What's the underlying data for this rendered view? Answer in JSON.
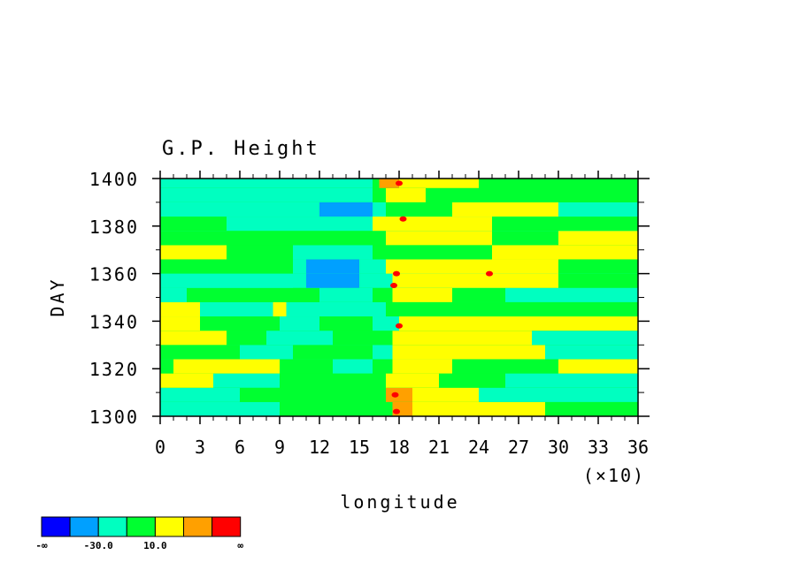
{
  "chart_data": {
    "type": "heatmap",
    "title": "G.P. Height",
    "xlabel": "longitude",
    "ylabel": "DAY",
    "x_scale_note": "(×10)",
    "xlim": [
      0,
      36
    ],
    "ylim": [
      1300,
      1400
    ],
    "x_ticks": [
      "0",
      "3",
      "6",
      "9",
      "12",
      "15",
      "18",
      "21",
      "24",
      "27",
      "30",
      "33",
      "36"
    ],
    "y_ticks": [
      "1300",
      "1320",
      "1340",
      "1360",
      "1380",
      "1400"
    ],
    "colorbar": {
      "colors": [
        "#0000ff",
        "#00a0ff",
        "#00ffc0",
        "#00ff30",
        "#ffff00",
        "#ffa000",
        "#ff0000"
      ],
      "labels": [
        "-∞",
        "-30.0",
        "10.0",
        "∞"
      ]
    },
    "bands": [
      {
        "y0": 1300,
        "y1": 1306,
        "base": 3,
        "segs": [
          [
            0,
            9,
            2
          ],
          [
            16.5,
            17.5,
            3
          ],
          [
            17.5,
            19,
            5
          ],
          [
            19,
            26,
            4
          ],
          [
            26,
            29,
            4
          ]
        ]
      },
      {
        "y0": 1306,
        "y1": 1312,
        "base": 3,
        "segs": [
          [
            0,
            6,
            2
          ],
          [
            17,
            19,
            5
          ],
          [
            19,
            24,
            4
          ],
          [
            24,
            36,
            2
          ]
        ]
      },
      {
        "y0": 1312,
        "y1": 1318,
        "base": 3,
        "segs": [
          [
            0,
            4,
            4
          ],
          [
            4,
            9,
            2
          ],
          [
            17,
            21,
            4
          ],
          [
            26,
            36,
            2
          ]
        ]
      },
      {
        "y0": 1318,
        "y1": 1324,
        "base": 3,
        "segs": [
          [
            1,
            9,
            4
          ],
          [
            13,
            16,
            2
          ],
          [
            17.5,
            22,
            4
          ],
          [
            30,
            36,
            4
          ]
        ]
      },
      {
        "y0": 1324,
        "y1": 1330,
        "base": 2,
        "segs": [
          [
            0,
            6,
            3
          ],
          [
            10,
            16,
            3
          ],
          [
            17.5,
            22,
            4
          ],
          [
            22,
            29,
            4
          ]
        ]
      },
      {
        "y0": 1330,
        "y1": 1336,
        "base": 3,
        "segs": [
          [
            0,
            5,
            4
          ],
          [
            8,
            13,
            2
          ],
          [
            17.5,
            28,
            4
          ],
          [
            28,
            36,
            2
          ]
        ]
      },
      {
        "y0": 1336,
        "y1": 1342,
        "base": 3,
        "segs": [
          [
            0,
            3,
            4
          ],
          [
            9,
            12,
            2
          ],
          [
            16,
            18,
            2
          ],
          [
            18,
            36,
            4
          ]
        ]
      },
      {
        "y0": 1342,
        "y1": 1348,
        "base": 2,
        "segs": [
          [
            0,
            3,
            4
          ],
          [
            8.5,
            9.5,
            4
          ],
          [
            17,
            22,
            3
          ],
          [
            22,
            36,
            3
          ]
        ]
      },
      {
        "y0": 1348,
        "y1": 1354,
        "base": 3,
        "segs": [
          [
            0,
            2,
            2
          ],
          [
            12,
            16,
            2
          ],
          [
            17.5,
            22,
            4
          ],
          [
            26,
            36,
            2
          ]
        ]
      },
      {
        "y0": 1354,
        "y1": 1360,
        "base": 2,
        "segs": [
          [
            0,
            10,
            2
          ],
          [
            11,
            15,
            1
          ],
          [
            17.5,
            30,
            4
          ],
          [
            30,
            36,
            3
          ]
        ]
      },
      {
        "y0": 1360,
        "y1": 1366,
        "base": 2,
        "segs": [
          [
            0,
            10,
            3
          ],
          [
            11,
            15,
            1
          ],
          [
            17,
            30,
            4
          ],
          [
            30,
            36,
            3
          ]
        ]
      },
      {
        "y0": 1366,
        "y1": 1372,
        "base": 3,
        "segs": [
          [
            0,
            5,
            4
          ],
          [
            10,
            16,
            2
          ],
          [
            17,
            25,
            3
          ],
          [
            25,
            36,
            4
          ]
        ]
      },
      {
        "y0": 1372,
        "y1": 1378,
        "base": 3,
        "segs": [
          [
            0,
            12,
            3
          ],
          [
            17,
            25,
            4
          ],
          [
            30,
            36,
            4
          ]
        ]
      },
      {
        "y0": 1378,
        "y1": 1384,
        "base": 2,
        "segs": [
          [
            0,
            5,
            3
          ],
          [
            16,
            25,
            4
          ],
          [
            25,
            36,
            3
          ]
        ]
      },
      {
        "y0": 1384,
        "y1": 1390,
        "base": 2,
        "segs": [
          [
            12,
            16,
            1
          ],
          [
            17,
            22,
            3
          ],
          [
            22,
            30,
            4
          ],
          [
            30,
            36,
            2
          ]
        ]
      },
      {
        "y0": 1390,
        "y1": 1396,
        "base": 3,
        "segs": [
          [
            0,
            16,
            2
          ],
          [
            17,
            20,
            4
          ],
          [
            20,
            36,
            3
          ]
        ]
      },
      {
        "y0": 1396,
        "y1": 1400,
        "base": 3,
        "segs": [
          [
            0,
            16,
            2
          ],
          [
            16.5,
            18,
            5
          ],
          [
            18,
            24,
            4
          ],
          [
            24,
            36,
            3
          ]
        ]
      }
    ],
    "hotspots": [
      {
        "lon": 17.8,
        "day": 1302,
        "level": 6
      },
      {
        "lon": 17.7,
        "day": 1309,
        "level": 6
      },
      {
        "lon": 18.0,
        "day": 1338,
        "level": 6
      },
      {
        "lon": 17.6,
        "day": 1355,
        "level": 6
      },
      {
        "lon": 17.8,
        "day": 1360,
        "level": 6
      },
      {
        "lon": 24.8,
        "day": 1360,
        "level": 6
      },
      {
        "lon": 18.3,
        "day": 1383,
        "level": 6
      },
      {
        "lon": 18.0,
        "day": 1398,
        "level": 6
      }
    ]
  }
}
